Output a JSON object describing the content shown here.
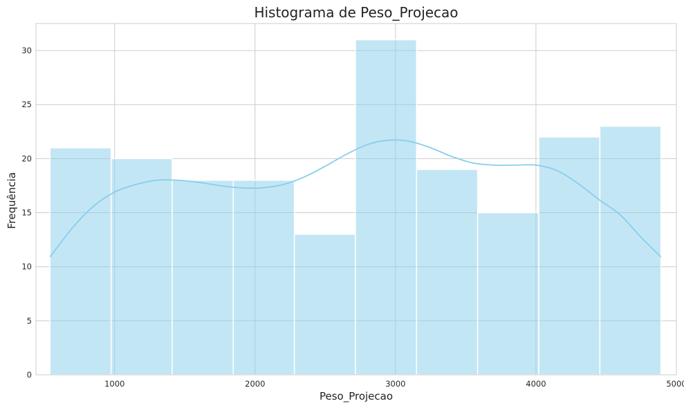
{
  "chart_data": {
    "type": "bar",
    "title": "Histograma de Peso_Projecao",
    "xlabel": "Peso_Projecao",
    "ylabel": "Frequência",
    "xlim": [
      440,
      5000
    ],
    "ylim": [
      0,
      32.5
    ],
    "xticks": [
      1000,
      2000,
      3000,
      4000,
      5000
    ],
    "yticks": [
      0,
      5,
      10,
      15,
      20,
      25,
      30
    ],
    "grid": true,
    "bins": [
      {
        "start": 540,
        "end": 975,
        "count": 21
      },
      {
        "start": 975,
        "end": 1410,
        "count": 20
      },
      {
        "start": 1410,
        "end": 1845,
        "count": 18
      },
      {
        "start": 1845,
        "end": 2280,
        "count": 18
      },
      {
        "start": 2280,
        "end": 2715,
        "count": 13
      },
      {
        "start": 2715,
        "end": 3150,
        "count": 31
      },
      {
        "start": 3150,
        "end": 3585,
        "count": 19
      },
      {
        "start": 3585,
        "end": 4020,
        "count": 15
      },
      {
        "start": 4020,
        "end": 4455,
        "count": 22
      },
      {
        "start": 4455,
        "end": 4890,
        "count": 23
      }
    ],
    "kde": {
      "x": [
        540,
        700,
        850,
        1000,
        1150,
        1300,
        1450,
        1600,
        1750,
        1900,
        2050,
        2200,
        2350,
        2500,
        2650,
        2800,
        2950,
        3100,
        3250,
        3400,
        3550,
        3700,
        3850,
        4000,
        4150,
        4300,
        4450,
        4600,
        4750,
        4890
      ],
      "y": [
        10.9,
        13.6,
        15.6,
        16.9,
        17.6,
        18.0,
        18.0,
        17.8,
        17.5,
        17.3,
        17.3,
        17.6,
        18.3,
        19.3,
        20.4,
        21.3,
        21.7,
        21.6,
        21.0,
        20.2,
        19.6,
        19.4,
        19.4,
        19.4,
        18.9,
        17.7,
        16.2,
        14.8,
        12.7,
        10.9
      ]
    },
    "colors": {
      "bar_fill": "#87ceeb",
      "bar_opacity": 0.5,
      "bar_edge": "#ffffff",
      "kde_line": "#87ceeb",
      "grid": "#cccccc",
      "axes_edge": "#cccccc"
    }
  }
}
